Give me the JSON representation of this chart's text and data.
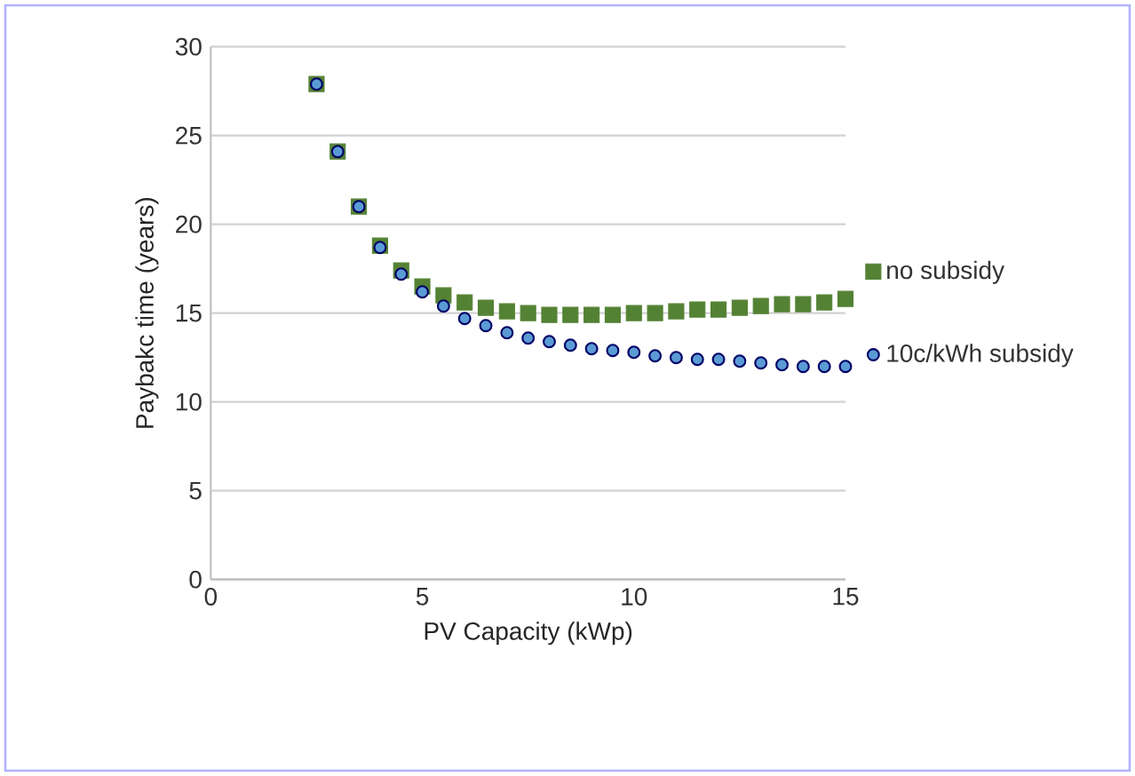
{
  "chart_data": {
    "type": "scatter",
    "xlabel": "PV Capacity (kWp)",
    "ylabel": "Paybakc time (years)",
    "x": [
      2.5,
      3,
      3.5,
      4,
      4.5,
      5,
      5.5,
      6,
      6.5,
      7,
      7.5,
      8,
      8.5,
      9,
      9.5,
      10,
      10.5,
      11,
      11.5,
      12,
      12.5,
      13,
      13.5,
      14,
      14.5,
      15
    ],
    "series": [
      {
        "name": "no subsidy",
        "color": "#548235",
        "marker": "square",
        "values": [
          27.9,
          24.1,
          21.0,
          18.8,
          17.4,
          16.5,
          16.0,
          15.6,
          15.3,
          15.1,
          15.0,
          14.9,
          14.9,
          14.9,
          14.9,
          15.0,
          15.0,
          15.1,
          15.2,
          15.2,
          15.3,
          15.4,
          15.5,
          15.5,
          15.6,
          15.8
        ]
      },
      {
        "name": "10c/kWh subsidy",
        "color": "#5b9bd5",
        "marker": "circle",
        "values": [
          27.9,
          24.1,
          21.0,
          18.7,
          17.2,
          16.2,
          15.4,
          14.7,
          14.3,
          13.9,
          13.6,
          13.4,
          13.2,
          13.0,
          12.9,
          12.8,
          12.6,
          12.5,
          12.4,
          12.4,
          12.3,
          12.2,
          12.1,
          12.0,
          12.0,
          12.0
        ]
      }
    ],
    "xlim": [
      0,
      15
    ],
    "xticks": [
      0,
      5,
      10,
      15
    ],
    "ylim": [
      0,
      30
    ],
    "yticks": [
      0,
      5,
      10,
      15,
      20,
      25,
      30
    ],
    "grid": "y",
    "legend": "right"
  }
}
